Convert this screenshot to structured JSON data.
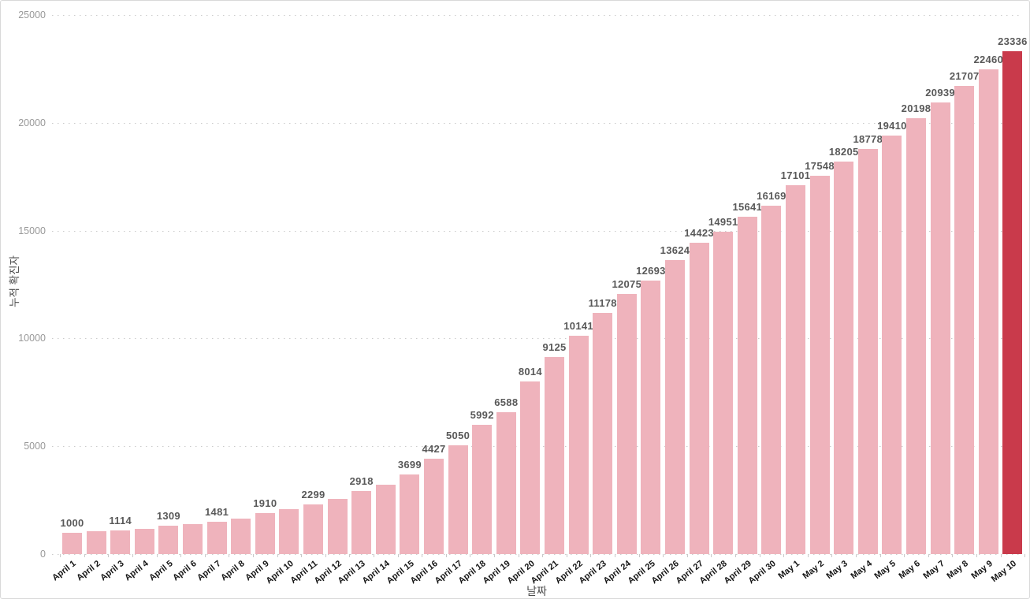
{
  "chart_data": {
    "type": "bar",
    "title": "",
    "xlabel": "날짜",
    "ylabel": "누적 확진자",
    "ylim": [
      0,
      25000
    ],
    "y_ticks": [
      0,
      5000,
      10000,
      15000,
      20000,
      25000
    ],
    "grid": "horizontal-dotted",
    "legend": "none",
    "categories": [
      "April 1",
      "April 2",
      "April 3",
      "April 4",
      "April 5",
      "April 6",
      "April 7",
      "April 8",
      "April 9",
      "April 10",
      "April 11",
      "April 12",
      "April 13",
      "April 14",
      "April 15",
      "April 16",
      "April 17",
      "April 18",
      "April 19",
      "April 20",
      "April 21",
      "April 22",
      "April 23",
      "April 24",
      "April 25",
      "April 26",
      "April 27",
      "April 28",
      "April 29",
      "April 30",
      "May 1",
      "May 2",
      "May 3",
      "May 4",
      "May 5",
      "May 6",
      "May 7",
      "May 8",
      "May 9",
      "May 10"
    ],
    "values": [
      1000,
      1050,
      1114,
      1180,
      1309,
      1380,
      1481,
      1640,
      1910,
      2080,
      2299,
      2560,
      2918,
      3230,
      3699,
      4427,
      5050,
      5992,
      6588,
      8014,
      9125,
      10141,
      11178,
      12075,
      12693,
      13624,
      14423,
      14951,
      15641,
      16169,
      17101,
      17548,
      18205,
      18778,
      19410,
      20198,
      20939,
      21707,
      22460,
      23336
    ],
    "value_labels": [
      "1000",
      "",
      "1114",
      "",
      "1309",
      "",
      "1481",
      "",
      "1910",
      "",
      "2299",
      "",
      "2918",
      "",
      "3699",
      "4427",
      "5050",
      "5992",
      "6588",
      "8014",
      "9125",
      "10141",
      "11178",
      "12075",
      "12693",
      "13624",
      "14423",
      "14951",
      "15641",
      "16169",
      "17101",
      "17548",
      "18205",
      "18778",
      "19410",
      "20198",
      "20939",
      "21707",
      "22460",
      "23336"
    ],
    "highlight_index": 39
  },
  "colors": {
    "bar": "#efb3bc",
    "bar_highlight": "#c93a4b",
    "grid": "#cbcbcb",
    "value_label": "#595959",
    "y_tick_label": "#999999",
    "x_tick_label": "#141414",
    "axis_title": "#4d4d4d",
    "border": "#d9d9d9",
    "background": "#ffffff"
  }
}
